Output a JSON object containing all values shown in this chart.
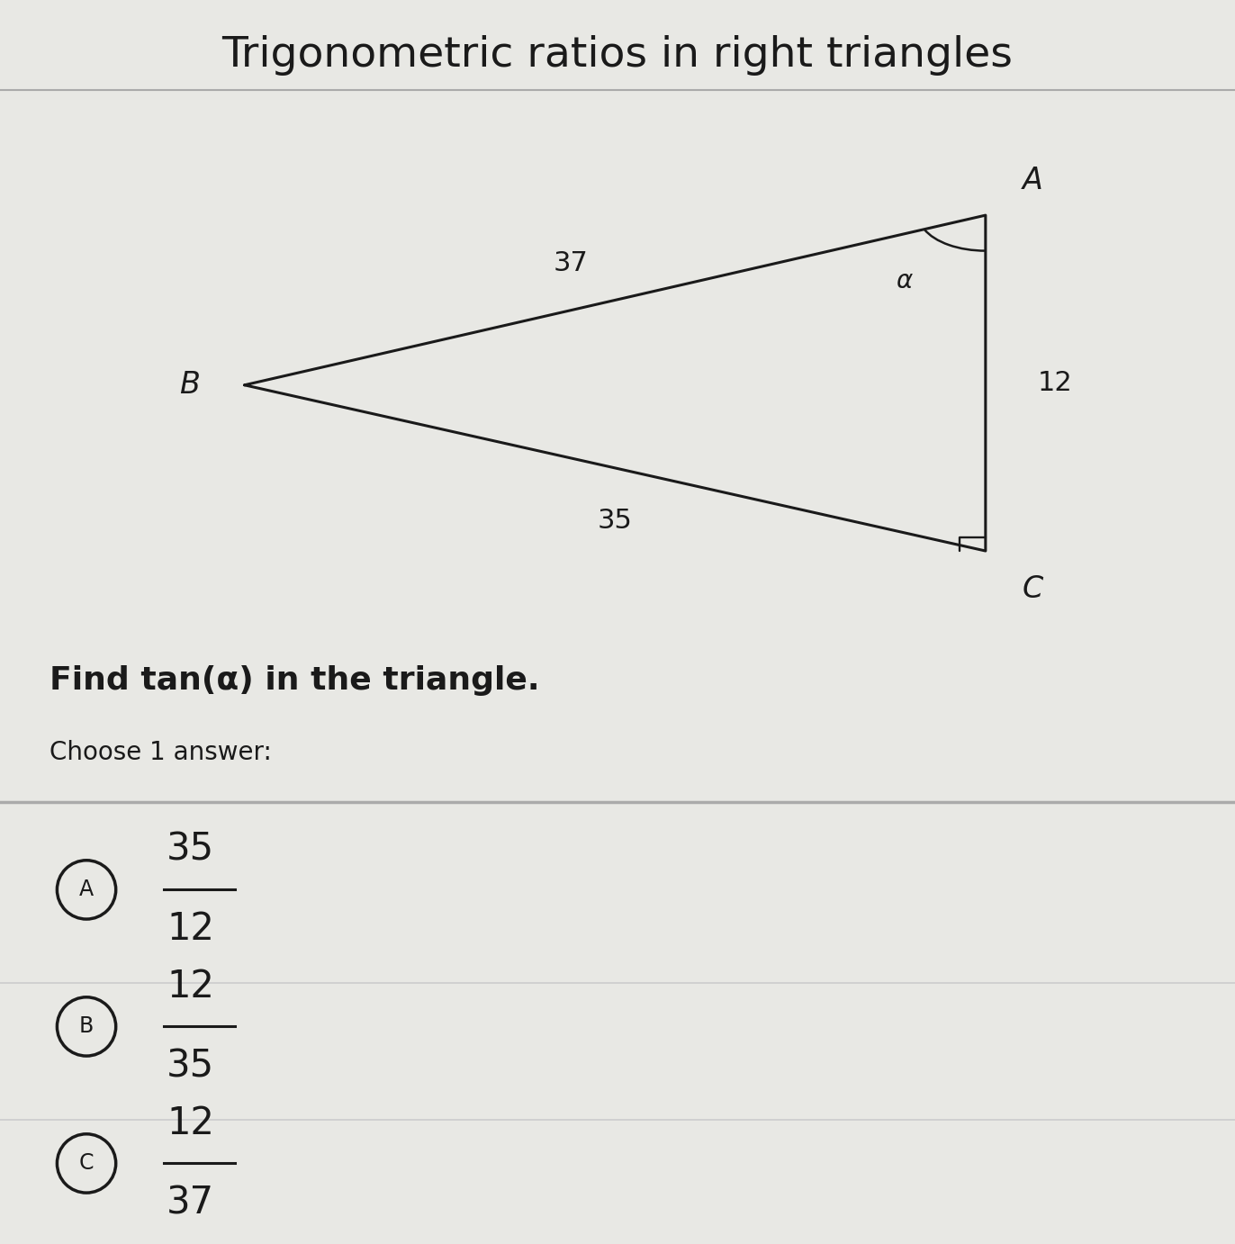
{
  "title": "Trigonometric ratios in right triangles",
  "title_fontsize": 34,
  "background_color": "#e8e8e4",
  "question_text": "Find tan(α) in the triangle.",
  "choose_text": "Choose 1 answer:",
  "triangle": {
    "B": [
      0.0,
      0.42
    ],
    "C": [
      1.0,
      0.0
    ],
    "A": [
      1.0,
      0.85
    ]
  },
  "side_labels": {
    "BA": "37",
    "BC": "35",
    "AC": "12"
  },
  "vertex_labels": {
    "A": "A",
    "B": "B",
    "C": "C",
    "alpha": "α"
  },
  "answers": [
    {
      "label": "A",
      "numerator": "35",
      "denominator": "12"
    },
    {
      "label": "B",
      "numerator": "12",
      "denominator": "35"
    },
    {
      "label": "C",
      "numerator": "12",
      "denominator": "37"
    }
  ],
  "answer_fontsize": 30,
  "line_color": "#1a1a1a",
  "text_color": "#1a1a1a",
  "divider_color": "#aaaaaa",
  "answer_divider_color": "#cccccc"
}
